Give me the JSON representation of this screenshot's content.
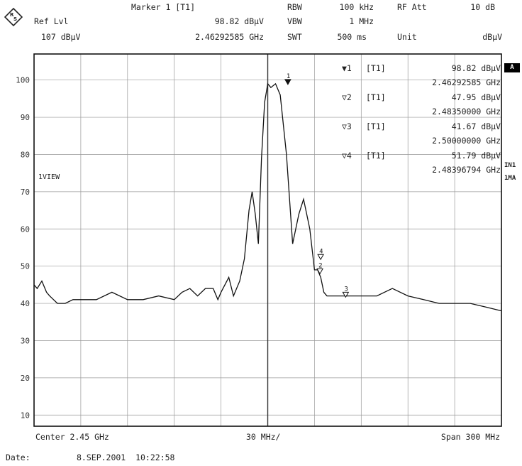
{
  "header": {
    "marker_label": "Marker 1 [T1]",
    "ref_lvl_label": "Ref Lvl",
    "ref_lvl_value": "107 dBμV",
    "marker_level": "98.82 dBμV",
    "marker_freq": "2.46292585 GHz",
    "rbw_label": "RBW",
    "rbw_value": "100 kHz",
    "vbw_label": "VBW",
    "vbw_value": "1 MHz",
    "swt_label": "SWT",
    "swt_value": "500 ms",
    "rfatt_label": "RF Att",
    "rfatt_value": "10 dB",
    "unit_label": "Unit",
    "unit_value": "dBμV"
  },
  "softkey_a": "A",
  "side_labels": [
    "IN1",
    "1MA"
  ],
  "trace_label": "1VIEW",
  "marker_table": [
    {
      "symbol": "▼",
      "num": "1",
      "trace": "[T1]",
      "level": "98.82 dBμV",
      "freq": "2.46292585 GHz"
    },
    {
      "symbol": "▽",
      "num": "2",
      "trace": "[T1]",
      "level": "47.95 dBμV",
      "freq": "2.48350000 GHz"
    },
    {
      "symbol": "▽",
      "num": "3",
      "trace": "[T1]",
      "level": "41.67 dBμV",
      "freq": "2.50000000 GHz"
    },
    {
      "symbol": "▽",
      "num": "4",
      "trace": "[T1]",
      "level": "51.79 dBμV",
      "freq": "2.48396794 GHz"
    }
  ],
  "footer": {
    "center": "Center 2.45 GHz",
    "div": "30 MHz/",
    "span": "Span 300 MHz",
    "date_label": "Date:",
    "date_value": "8.SEP.2001  10:22:58"
  },
  "chart_data": {
    "type": "line",
    "x_unit": "GHz",
    "y_unit": "dBμV",
    "xlim": [
      2.3,
      2.6
    ],
    "ylim": [
      7,
      107
    ],
    "yticks": [
      10,
      20,
      30,
      40,
      50,
      60,
      70,
      80,
      90,
      100
    ],
    "grid": true,
    "reference_line_x": 2.45,
    "series": [
      {
        "x": [
          2.3,
          2.302,
          2.305,
          2.308,
          2.31,
          2.315,
          2.32,
          2.325,
          2.33,
          2.34,
          2.35,
          2.36,
          2.37,
          2.38,
          2.39,
          2.395,
          2.4,
          2.405,
          2.41,
          2.415,
          2.418,
          2.42,
          2.425,
          2.428,
          2.432,
          2.435,
          2.438,
          2.44,
          2.442,
          2.444,
          2.446,
          2.448,
          2.45,
          2.452,
          2.455,
          2.458,
          2.462,
          2.466,
          2.47,
          2.473,
          2.475,
          2.477,
          2.48,
          2.482,
          2.484,
          2.486,
          2.488,
          2.49,
          2.495,
          2.5,
          2.51,
          2.52,
          2.53,
          2.54,
          2.55,
          2.56,
          2.57,
          2.58,
          2.59,
          2.6
        ],
        "y": [
          45,
          44,
          46,
          43,
          42,
          40,
          40,
          41,
          41,
          41,
          43,
          41,
          41,
          42,
          41,
          43,
          44,
          42,
          44,
          44,
          41,
          43,
          47,
          42,
          46,
          52,
          65,
          70,
          64,
          56,
          79,
          94,
          99,
          98,
          99,
          96,
          80,
          56,
          64,
          68,
          64,
          60,
          49,
          49,
          47,
          43,
          42,
          42,
          42,
          42,
          42,
          42,
          44,
          42,
          41,
          40,
          40,
          40,
          39,
          38
        ]
      }
    ],
    "markers": [
      {
        "n": 1,
        "x": 2.46292585,
        "y": 98.82
      },
      {
        "n": 2,
        "x": 2.4835,
        "y": 47.95
      },
      {
        "n": 3,
        "x": 2.5,
        "y": 41.67
      },
      {
        "n": 4,
        "x": 2.48396794,
        "y": 51.79
      }
    ]
  }
}
